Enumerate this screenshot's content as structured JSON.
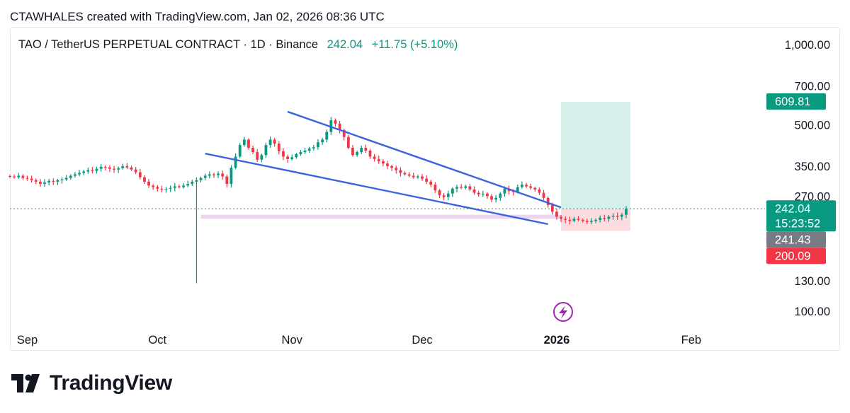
{
  "header": {
    "credit": "CTAWHALES created with TradingView.com, Jan 02, 2026 08:36 UTC"
  },
  "legend": {
    "symbol": "TAO / TetherUS PERPETUAL CONTRACT · 1D · Binance",
    "price": "242.04",
    "change": "+11.75 (+5.10%)"
  },
  "brand": {
    "name": "TradingView"
  },
  "colors": {
    "up": "#089981",
    "down": "#f23645",
    "trend": "#3d63dd",
    "support": "#e1bee7",
    "target_zone": "#d5f0ea",
    "stop_zone": "#fbdde0"
  },
  "chart_data": {
    "type": "candlestick",
    "timeframe": "1D",
    "scale": "log",
    "x_ticks": [
      "Sep",
      "Oct",
      "Nov",
      "Dec",
      "2026",
      "Feb"
    ],
    "y_ticks": [
      "1,000.00",
      "700.00",
      "500.00",
      "350.00",
      "270.00",
      "130.00",
      "100.00"
    ],
    "y_tick_values": [
      1000,
      700,
      500,
      350,
      270,
      130,
      100
    ],
    "price_labels": [
      {
        "text": "609.81",
        "value": 609.81,
        "kind": "target"
      },
      {
        "text": "242.04",
        "value": 242.04,
        "kind": "last"
      },
      {
        "text": "15:23:52",
        "value": 242.04,
        "kind": "countdown"
      },
      {
        "text": "241.43",
        "value": 241.43,
        "kind": "entry"
      },
      {
        "text": "200.09",
        "value": 200.09,
        "kind": "stop"
      }
    ],
    "last_price": 242.04,
    "candle_closes": [
      320,
      318,
      322,
      316,
      314,
      310,
      306,
      300,
      304,
      308,
      306,
      310,
      312,
      316,
      322,
      326,
      330,
      334,
      338,
      336,
      342,
      348,
      346,
      342,
      340,
      344,
      350,
      346,
      340,
      332,
      318,
      306,
      296,
      292,
      288,
      286,
      288,
      290,
      294,
      292,
      296,
      300,
      306,
      310,
      316,
      322,
      326,
      324,
      328,
      320,
      300,
      345,
      380,
      420,
      440,
      410,
      395,
      370,
      385,
      420,
      440,
      425,
      398,
      380,
      372,
      378,
      388,
      395,
      400,
      408,
      412,
      430,
      440,
      470,
      520,
      505,
      478,
      450,
      410,
      385,
      395,
      410,
      400,
      380,
      372,
      365,
      358,
      350,
      345,
      338,
      330,
      326,
      322,
      318,
      320,
      314,
      306,
      298,
      284,
      272,
      268,
      276,
      288,
      292,
      290,
      294,
      286,
      278,
      274,
      276,
      270,
      262,
      266,
      276,
      288,
      282,
      280,
      292,
      298,
      294,
      290,
      286,
      278,
      266,
      250,
      236,
      226,
      222,
      220,
      218,
      222,
      220,
      218,
      216,
      218,
      220,
      224,
      222,
      226,
      228,
      226,
      230,
      242.04
    ],
    "annotations": [
      {
        "type": "trendline",
        "label": "resistance",
        "from": {
          "date": "2025-10-31",
          "price": 560
        },
        "to": {
          "date": "2026-01-02",
          "price": 245
        }
      },
      {
        "type": "trendline",
        "label": "support",
        "from": {
          "date": "2025-10-12",
          "price": 390
        },
        "to": {
          "date": "2025-12-30",
          "price": 212
        }
      },
      {
        "type": "zone",
        "label": "support-band",
        "from_date": "2025-10-11",
        "to_date": "2026-01-03",
        "low": 222,
        "high": 230
      },
      {
        "type": "long-position",
        "entry": 241.43,
        "target": 609.81,
        "stop": 200.09,
        "from_date": "2026-01-02",
        "to_date": "2026-01-18"
      }
    ]
  }
}
